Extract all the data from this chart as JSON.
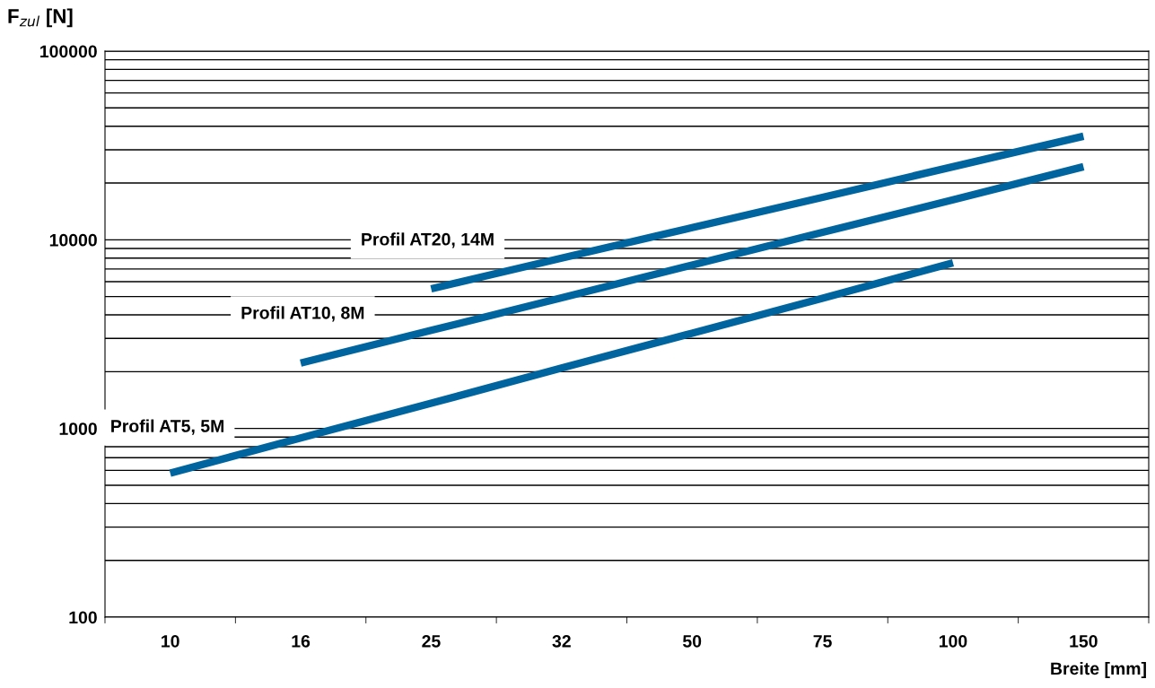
{
  "chart_data": {
    "type": "line",
    "ylabel": "F$_{zul}$ [N]",
    "xlabel": "Breite [mm]",
    "categories": [
      "10",
      "16",
      "25",
      "32",
      "50",
      "75",
      "100",
      "150"
    ],
    "series": [
      {
        "name": "Profil AT5, 5M",
        "color": "#00659e",
        "values": [
          580,
          890,
          1360,
          2090,
          3200,
          4900,
          7550,
          null
        ]
      },
      {
        "name": "Profil AT10, 8M",
        "color": "#00659e",
        "values": [
          null,
          2220,
          3310,
          4930,
          7350,
          10950,
          16300,
          24400
        ]
      },
      {
        "name": "Profil AT20, 14M",
        "color": "#00659e",
        "values": [
          null,
          null,
          5500,
          8000,
          11600,
          16800,
          24400,
          35400
        ]
      }
    ],
    "log": "y",
    "ylim": [
      100,
      100000
    ],
    "yticks": [
      100,
      {
        "value": 200,
        "label": null
      },
      {
        "value": 300,
        "label": null
      },
      {
        "value": 400,
        "label": null
      },
      {
        "value": 500,
        "label": null
      },
      {
        "value": 600,
        "label": null
      },
      {
        "value": 700,
        "label": null
      },
      {
        "value": 800,
        "label": null
      },
      {
        "value": 900,
        "label": null
      },
      1000,
      {
        "value": 2000,
        "label": null
      },
      {
        "value": 3000,
        "label": null
      },
      {
        "value": 4000,
        "label": null
      },
      {
        "value": 5000,
        "label": null
      },
      {
        "value": 6000,
        "label": null
      },
      {
        "value": 7000,
        "label": null
      },
      {
        "value": 8000,
        "label": null
      },
      {
        "value": 9000,
        "label": null
      },
      10000,
      {
        "value": 20000,
        "label": null
      },
      {
        "value": 30000,
        "label": null
      },
      {
        "value": 40000,
        "label": null
      },
      {
        "value": 50000,
        "label": null
      },
      {
        "value": 60000,
        "label": null
      },
      {
        "value": 70000,
        "label": null
      },
      {
        "value": 80000,
        "label": null
      },
      {
        "value": 90000,
        "label": null
      },
      100000
    ],
    "grid": "y",
    "legend": false,
    "marker": "none",
    "line_style": "solid"
  }
}
